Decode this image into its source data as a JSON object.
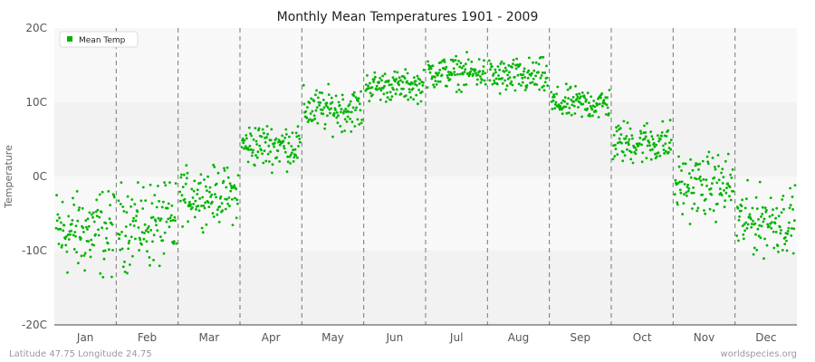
{
  "chart_data": {
    "type": "scatter",
    "title": "Monthly Mean Temperatures 1901 - 2009",
    "ylabel": "Temperature",
    "xlabel": "",
    "categories": [
      "Jan",
      "Feb",
      "Mar",
      "Apr",
      "May",
      "Jun",
      "Jul",
      "Aug",
      "Sep",
      "Oct",
      "Nov",
      "Dec"
    ],
    "yticks": [
      "20C",
      "10C",
      "0C",
      "-10C",
      "-20C"
    ],
    "ylim": [
      -20,
      20
    ],
    "legend_position": "top-left",
    "grid": true,
    "series": [
      {
        "name": "Mean Temp",
        "color": "#00b400",
        "years": 109,
        "monthly_range": [
          {
            "month": "Jan",
            "min": -16.3,
            "max": -2.0,
            "typical": -7.5
          },
          {
            "month": "Feb",
            "min": -15.0,
            "max": -0.8,
            "typical": -6.5
          },
          {
            "month": "Mar",
            "min": -7.8,
            "max": 2.4,
            "typical": -2.5
          },
          {
            "month": "Apr",
            "min": 0.5,
            "max": 8.6,
            "typical": 4.2
          },
          {
            "month": "May",
            "min": 4.8,
            "max": 12.7,
            "typical": 9.0
          },
          {
            "month": "Jun",
            "min": 9.7,
            "max": 15.2,
            "typical": 12.2
          },
          {
            "month": "Jul",
            "min": 11.4,
            "max": 17.2,
            "typical": 14.0
          },
          {
            "month": "Aug",
            "min": 11.0,
            "max": 17.0,
            "typical": 13.4
          },
          {
            "month": "Sep",
            "min": 6.6,
            "max": 12.7,
            "typical": 9.8
          },
          {
            "month": "Oct",
            "min": 0.4,
            "max": 8.6,
            "typical": 4.6
          },
          {
            "month": "Nov",
            "min": -7.4,
            "max": 3.3,
            "typical": -1.2
          },
          {
            "month": "Dec",
            "min": -12.5,
            "max": -0.5,
            "typical": -6.0
          }
        ]
      }
    ]
  },
  "footer": {
    "location": "Latitude 47.75 Longitude 24.75",
    "credit": "worldspecies.org"
  }
}
